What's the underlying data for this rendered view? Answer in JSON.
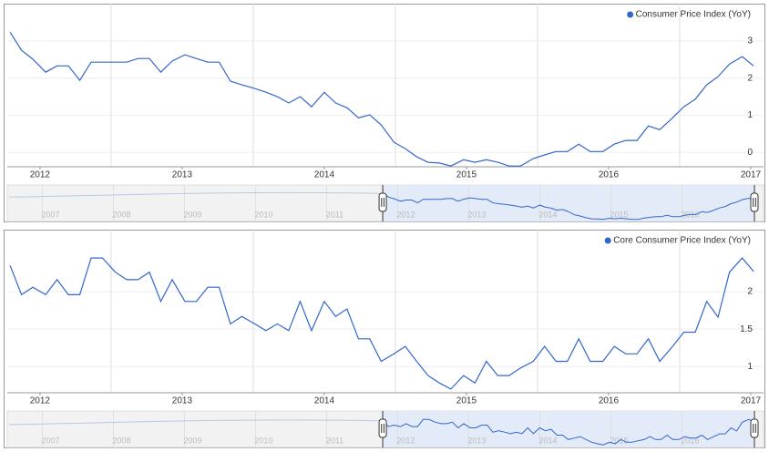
{
  "chart_data": [
    {
      "type": "line",
      "legend": "top-right",
      "grid": true,
      "x": [
        2011.79,
        2011.87,
        2011.95,
        2012.04,
        2012.12,
        2012.2,
        2012.28,
        2012.36,
        2012.44,
        2012.53,
        2012.61,
        2012.69,
        2012.77,
        2012.85,
        2012.93,
        2013.02,
        2013.1,
        2013.18,
        2013.26,
        2013.34,
        2013.42,
        2013.51,
        2013.59,
        2013.67,
        2013.75,
        2013.83,
        2013.91,
        2014.0,
        2014.08,
        2014.16,
        2014.24,
        2014.32,
        2014.4,
        2014.49,
        2014.57,
        2014.65,
        2014.73,
        2014.81,
        2014.89,
        2014.98,
        2015.06,
        2015.14,
        2015.22,
        2015.3,
        2015.38,
        2015.47,
        2015.55,
        2015.63,
        2015.71,
        2015.79,
        2015.87,
        2015.96,
        2016.04,
        2016.12,
        2016.2,
        2016.28,
        2016.36,
        2016.45,
        2016.53,
        2016.61,
        2016.69,
        2016.77,
        2016.85,
        2016.94,
        2017.02
      ],
      "series": [
        {
          "name": "Consumer Price Index (YoY)",
          "color": "#3366cc",
          "values": [
            3.24,
            2.75,
            2.51,
            2.16,
            2.33,
            2.33,
            1.94,
            2.43,
            2.43,
            2.43,
            2.43,
            2.53,
            2.53,
            2.16,
            2.46,
            2.63,
            2.53,
            2.43,
            2.43,
            1.92,
            1.82,
            1.72,
            1.62,
            1.5,
            1.33,
            1.5,
            1.23,
            1.62,
            1.33,
            1.2,
            0.93,
            1.01,
            0.74,
            0.27,
            0.1,
            -0.12,
            -0.27,
            -0.29,
            -0.37,
            -0.2,
            -0.27,
            -0.2,
            -0.27,
            -0.37,
            -0.37,
            -0.17,
            -0.07,
            0.02,
            0.02,
            0.22,
            0.02,
            0.02,
            0.22,
            0.32,
            0.32,
            0.71,
            0.61,
            0.93,
            1.23,
            1.43,
            1.82,
            2.04,
            2.38,
            2.58,
            2.33
          ]
        }
      ],
      "xlim": [
        2011.77,
        2017.09
      ],
      "xticks": [
        2012,
        2013,
        2014,
        2015,
        2016,
        2017
      ],
      "ylim": [
        -0.39,
        3.91
      ],
      "yticks": [
        0,
        1,
        2,
        3
      ],
      "navigator": {
        "ticks": [
          2007,
          2008,
          2009,
          2010,
          2011,
          2012,
          2013,
          2014,
          2015,
          2016
        ]
      }
    },
    {
      "type": "line",
      "legend": "top-right",
      "grid": true,
      "x": [
        2011.79,
        2011.87,
        2011.95,
        2012.04,
        2012.12,
        2012.2,
        2012.28,
        2012.36,
        2012.44,
        2012.53,
        2012.61,
        2012.69,
        2012.77,
        2012.85,
        2012.93,
        2013.02,
        2013.1,
        2013.18,
        2013.26,
        2013.34,
        2013.42,
        2013.51,
        2013.59,
        2013.67,
        2013.75,
        2013.83,
        2013.91,
        2014.0,
        2014.08,
        2014.16,
        2014.24,
        2014.32,
        2014.4,
        2014.49,
        2014.57,
        2014.65,
        2014.73,
        2014.81,
        2014.89,
        2014.98,
        2015.06,
        2015.14,
        2015.22,
        2015.3,
        2015.38,
        2015.47,
        2015.55,
        2015.63,
        2015.71,
        2015.79,
        2015.87,
        2015.96,
        2016.04,
        2016.12,
        2016.2,
        2016.28,
        2016.36,
        2016.45,
        2016.53,
        2016.61,
        2016.69,
        2016.77,
        2016.85,
        2016.94,
        2017.02
      ],
      "series": [
        {
          "name": "Core Consumer Price Index (YoY)",
          "color": "#3366cc",
          "values": [
            2.35,
            1.96,
            2.06,
            1.96,
            2.16,
            1.96,
            1.96,
            2.45,
            2.45,
            2.26,
            2.16,
            2.16,
            2.26,
            1.87,
            2.16,
            1.87,
            1.87,
            2.06,
            2.06,
            1.57,
            1.67,
            1.57,
            1.48,
            1.57,
            1.48,
            1.87,
            1.48,
            1.87,
            1.67,
            1.77,
            1.37,
            1.37,
            1.07,
            1.17,
            1.27,
            1.07,
            0.88,
            0.78,
            0.7,
            0.88,
            0.78,
            1.07,
            0.88,
            0.88,
            0.98,
            1.07,
            1.27,
            1.07,
            1.07,
            1.37,
            1.07,
            1.07,
            1.27,
            1.17,
            1.17,
            1.37,
            1.07,
            1.27,
            1.46,
            1.46,
            1.87,
            1.66,
            2.26,
            2.45,
            2.27
          ]
        }
      ],
      "xlim": [
        2011.77,
        2017.09
      ],
      "xticks": [
        2012,
        2013,
        2014,
        2015,
        2016,
        2017
      ],
      "ylim": [
        0.65,
        2.78
      ],
      "yticks": [
        1,
        1.5,
        2
      ],
      "navigator": {
        "ticks": [
          2007,
          2008,
          2009,
          2010,
          2011,
          2012,
          2013,
          2014,
          2015,
          2016
        ]
      }
    }
  ]
}
